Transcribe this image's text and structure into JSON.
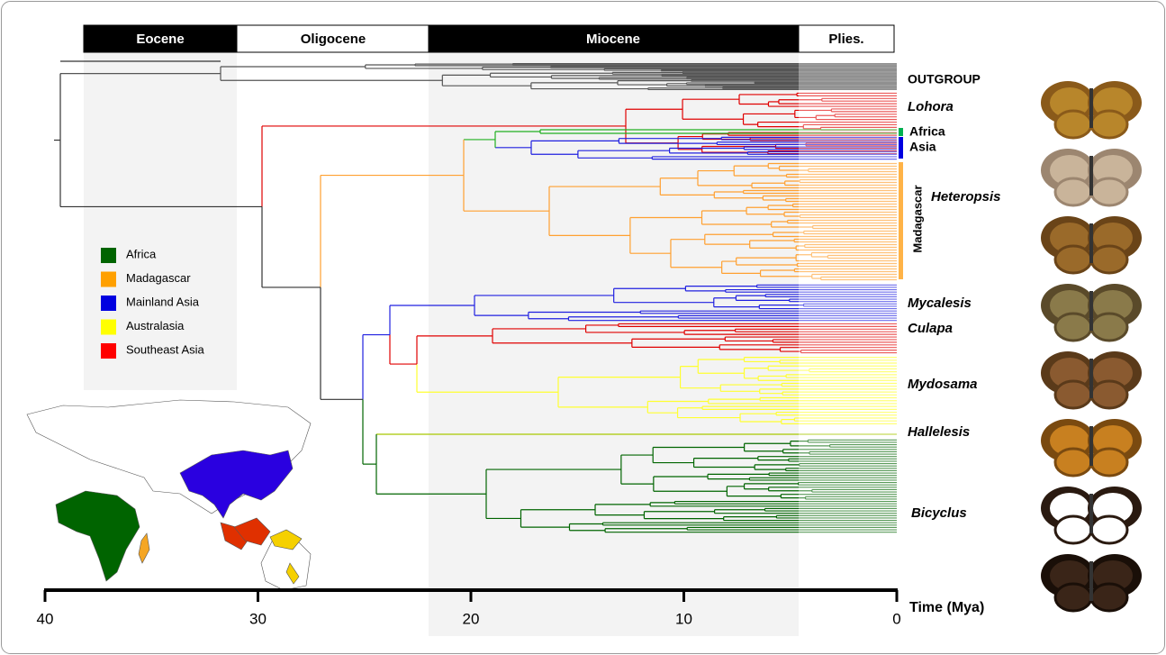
{
  "epochs": [
    "Eocene",
    "Oligocene",
    "Miocene",
    "Plies."
  ],
  "clades": [
    "OUTGROUP",
    "Lohora",
    "Africa",
    "Asia",
    "Madagascar",
    "Heteropsis",
    "Mycalesis",
    "Culapa",
    "Mydosama",
    "Hallelesis",
    "Bicyclus"
  ],
  "legend": [
    {
      "label": "Africa",
      "color": "#006400"
    },
    {
      "label": "Madagascar",
      "color": "#ffa000"
    },
    {
      "label": "Mainland Asia",
      "color": "#0000e0"
    },
    {
      "label": "Australasia",
      "color": "#ffff00"
    },
    {
      "label": "Southeast Asia",
      "color": "#ff0000"
    }
  ],
  "time_axis": {
    "label": "Time (Mya)",
    "ticks": [
      40,
      30,
      20,
      10,
      0
    ]
  }
}
